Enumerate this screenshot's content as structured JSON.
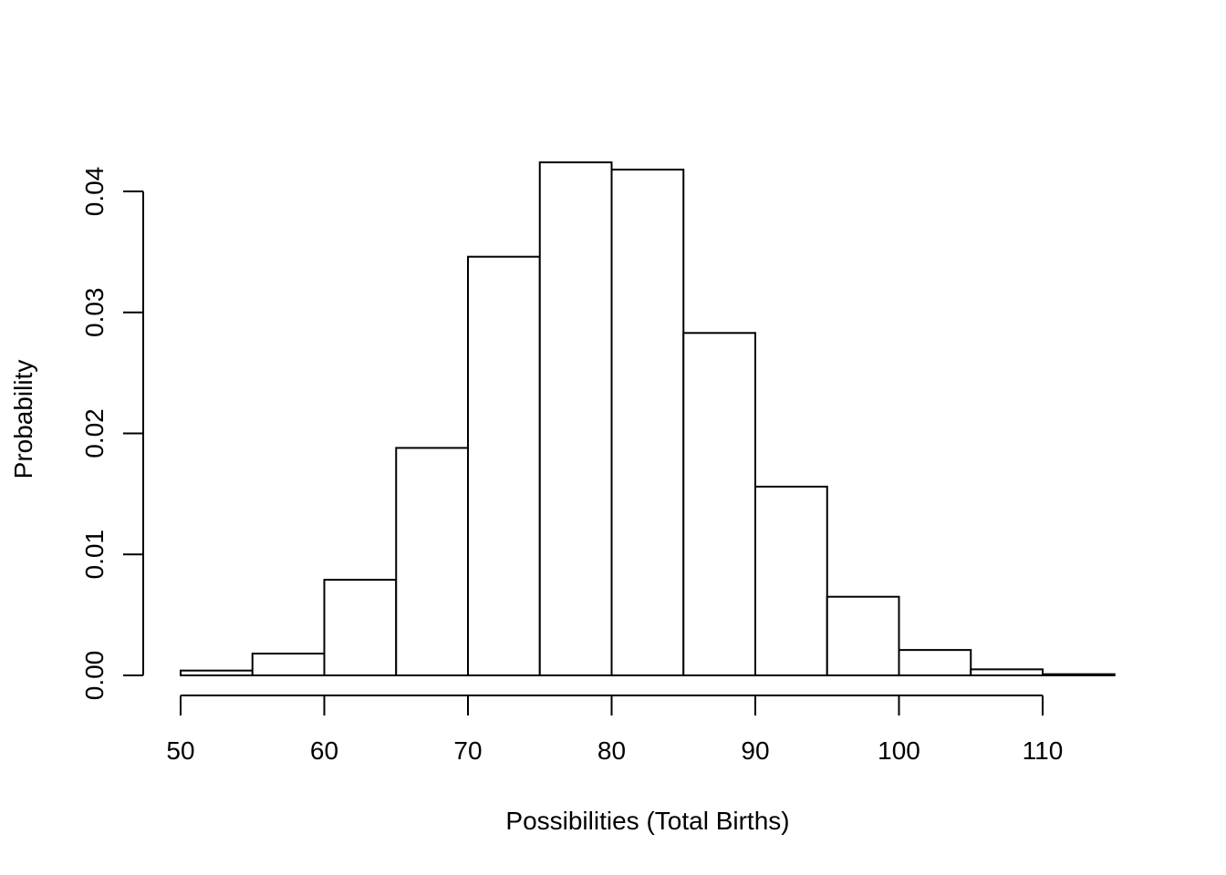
{
  "chart_data": {
    "type": "bar",
    "subtype": "histogram",
    "title": "",
    "xlabel": "Possibilities (Total Births)",
    "ylabel": "Probability",
    "bins": [
      {
        "x0": 50,
        "x1": 55,
        "value": 0.0004
      },
      {
        "x0": 55,
        "x1": 60,
        "value": 0.0018
      },
      {
        "x0": 60,
        "x1": 65,
        "value": 0.0079
      },
      {
        "x0": 65,
        "x1": 70,
        "value": 0.0188
      },
      {
        "x0": 70,
        "x1": 75,
        "value": 0.0346
      },
      {
        "x0": 75,
        "x1": 80,
        "value": 0.0424
      },
      {
        "x0": 80,
        "x1": 85,
        "value": 0.0418
      },
      {
        "x0": 85,
        "x1": 90,
        "value": 0.0283
      },
      {
        "x0": 90,
        "x1": 95,
        "value": 0.0156
      },
      {
        "x0": 95,
        "x1": 100,
        "value": 0.0065
      },
      {
        "x0": 100,
        "x1": 105,
        "value": 0.0021
      },
      {
        "x0": 105,
        "x1": 110,
        "value": 0.0005
      },
      {
        "x0": 110,
        "x1": 115,
        "value": 0.0001
      }
    ],
    "xticks": [
      50,
      60,
      70,
      80,
      90,
      100,
      110
    ],
    "xtick_labels": [
      "50",
      "60",
      "70",
      "80",
      "90",
      "100",
      "110"
    ],
    "yticks": [
      0,
      0.01,
      0.02,
      0.03,
      0.04
    ],
    "ytick_labels": [
      "0.00",
      "0.01",
      "0.02",
      "0.03",
      "0.04"
    ],
    "xlim": [
      50,
      115
    ],
    "ylim": [
      0,
      0.04
    ],
    "grid": false,
    "legend": "none",
    "colors": {
      "bar_fill": "#ffffff",
      "bar_stroke": "#000000",
      "axis": "#000000"
    }
  }
}
